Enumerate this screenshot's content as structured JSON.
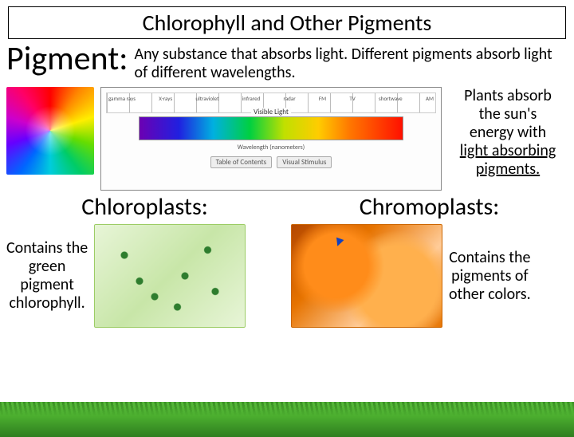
{
  "title": "Chlorophyll and Other Pigments",
  "pigment": {
    "label": "Pigment:",
    "definition": "Any substance that absorbs light.  Different pigments absorb light of different wavelengths."
  },
  "plants_text": {
    "line1": "Plants absorb",
    "line2": "the sun's",
    "line3": "energy with",
    "underline1": "light absorbing",
    "underline2": "pigments."
  },
  "spectrum": {
    "em_labels": [
      "gamma rays",
      "X-rays",
      "ultraviolet",
      "infrared",
      "radar",
      "FM",
      "TV",
      "shortwave",
      "AM"
    ],
    "visible_label": "Visible Light",
    "wavelength_label": "Wavelength (nanometers)",
    "btn1": "Table of Contents",
    "btn2": "Visual Stimulus",
    "visible_gradient_colors": [
      "#6b00b3",
      "#2020e0",
      "#00b0e0",
      "#00d040",
      "#c0e000",
      "#ffcc00",
      "#ff7700",
      "#ff1000"
    ]
  },
  "chloroplasts": {
    "heading": "Chloroplasts:",
    "desc_l1": "Contains the",
    "desc_l2": "green",
    "desc_l3": "pigment",
    "desc_l4": "chlorophyll."
  },
  "chromoplasts": {
    "heading": "Chromoplasts:",
    "desc_l1": "Contains the",
    "desc_l2": "pigments of",
    "desc_l3": "other colors."
  },
  "colors": {
    "text": "#000000",
    "background": "#ffffff",
    "grass_dark": "#2e7d1f",
    "grass_light": "#4caf2f"
  }
}
